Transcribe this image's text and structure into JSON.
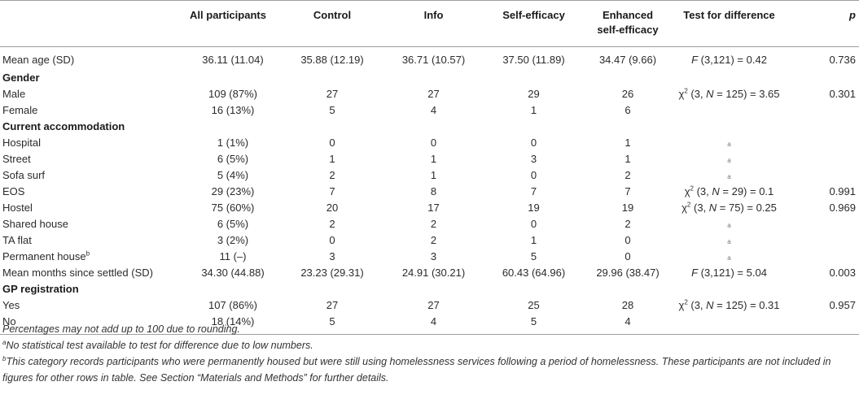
{
  "headers": {
    "all": "All participants",
    "control": "Control",
    "info": "Info",
    "self_efficacy": "Self-efficacy",
    "enhanced_line1": "Enhanced",
    "enhanced_line2": "self-efficacy",
    "test": "Test for difference",
    "p": "p"
  },
  "rows": {
    "mean_age": {
      "label": "Mean age (SD)",
      "all": "36.11 (11.04)",
      "control": "35.88 (12.19)",
      "info": "36.71 (10.57)",
      "self_efficacy": "37.50 (11.89)",
      "enhanced": "34.47 (9.66)",
      "test_stat": "F",
      "test_rest": " (3,121) = 0.42",
      "p": "0.736"
    },
    "gender": {
      "label": "Gender"
    },
    "male": {
      "label": "Male",
      "all": "109 (87%)",
      "control": "27",
      "info": "27",
      "self_efficacy": "29",
      "enhanced": "26",
      "test_pre": "χ",
      "test_sup": "2",
      "test_mid": " (3, ",
      "test_n": "N",
      "test_post": " = 125) = 3.65",
      "p": "0.301"
    },
    "female": {
      "label": "Female",
      "all": "16 (13%)",
      "control": "5",
      "info": "4",
      "self_efficacy": "1",
      "enhanced": "6"
    },
    "accommodation": {
      "label": "Current accommodation"
    },
    "hospital": {
      "label": "Hospital",
      "all": "1 (1%)",
      "control": "0",
      "info": "0",
      "self_efficacy": "0",
      "enhanced": "1",
      "test_note": "a"
    },
    "street": {
      "label": "Street",
      "all": "6 (5%)",
      "control": "1",
      "info": "1",
      "self_efficacy": "3",
      "enhanced": "1",
      "test_note": "a"
    },
    "sofa_surf": {
      "label": "Sofa surf",
      "all": "5 (4%)",
      "control": "2",
      "info": "1",
      "self_efficacy": "0",
      "enhanced": "2",
      "test_note": "a"
    },
    "eos": {
      "label": "EOS",
      "all": "29 (23%)",
      "control": "7",
      "info": "8",
      "self_efficacy": "7",
      "enhanced": "7",
      "test_pre": "χ",
      "test_sup": "2",
      "test_mid": " (3, ",
      "test_n": "N",
      "test_post": " = 29) = 0.1",
      "p": "0.991"
    },
    "hostel": {
      "label": "Hostel",
      "all": "75 (60%)",
      "control": "20",
      "info": "17",
      "self_efficacy": "19",
      "enhanced": "19",
      "test_pre": "χ",
      "test_sup": "2",
      "test_mid": " (3, ",
      "test_n": "N",
      "test_post": " = 75) = 0.25",
      "p": "0.969"
    },
    "shared_house": {
      "label": "Shared house",
      "all": "6 (5%)",
      "control": "2",
      "info": "2",
      "self_efficacy": "0",
      "enhanced": "2",
      "test_note": "a"
    },
    "ta_flat": {
      "label": "TA flat",
      "all": "3 (2%)",
      "control": "0",
      "info": "2",
      "self_efficacy": "1",
      "enhanced": "0",
      "test_note": "a"
    },
    "permanent_house": {
      "label": "Permanent house",
      "label_sup": "b",
      "all": "11 (–)",
      "control": "3",
      "info": "3",
      "self_efficacy": "5",
      "enhanced": "0",
      "test_note": "a"
    },
    "mean_months": {
      "label": "Mean months since settled (SD)",
      "all": "34.30 (44.88)",
      "control": "23.23 (29.31)",
      "info": "24.91 (30.21)",
      "self_efficacy": "60.43 (64.96)",
      "enhanced": "29.96 (38.47)",
      "test_stat": "F",
      "test_rest": " (3,121) = 5.04",
      "p": "0.003"
    },
    "gp_registration": {
      "label": "GP registration"
    },
    "yes": {
      "label": "Yes",
      "all": "107 (86%)",
      "control": "27",
      "info": "27",
      "self_efficacy": "25",
      "enhanced": "28",
      "test_pre": "χ",
      "test_sup": "2",
      "test_mid": " (3, ",
      "test_n": "N",
      "test_post": " = 125) = 0.31",
      "p": "0.957"
    },
    "no": {
      "label": "No",
      "all": "18 (14%)",
      "control": "5",
      "info": "4",
      "self_efficacy": "5",
      "enhanced": "4"
    }
  },
  "notes": {
    "rounding": "Percentages may not add up to 100 due to rounding.",
    "a_mark": "a",
    "a_text": "No statistical test available to test for difference due to low numbers.",
    "b_mark": "b",
    "b_text": "This category records participants who were permanently housed but were still using homelessness services following a period of homelessness. These participants are not included in figures for other rows in table. See Section “Materials and Methods” for further details."
  }
}
